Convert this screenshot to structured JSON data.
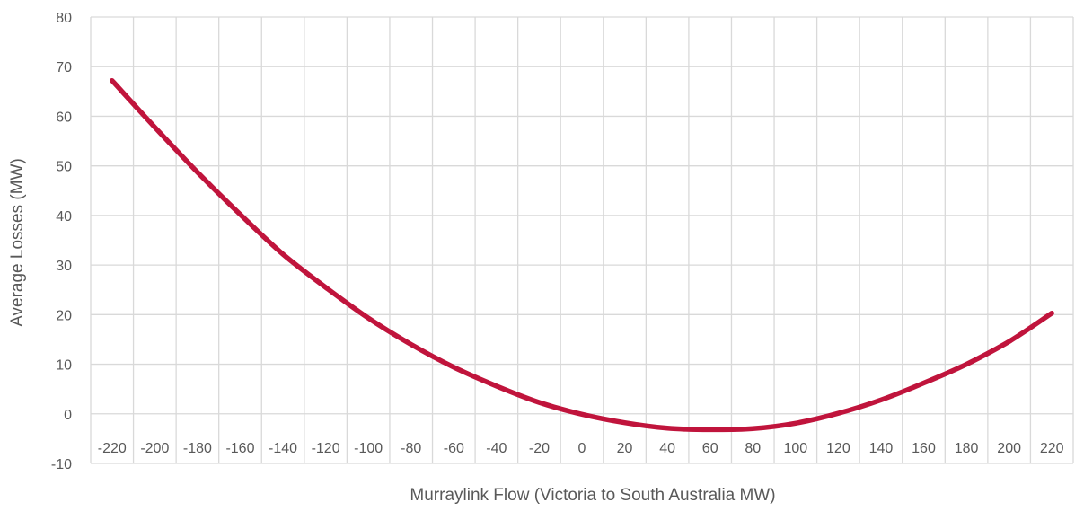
{
  "chart_data": {
    "type": "line",
    "title": "",
    "xlabel": "Murraylink Flow (Victoria to South Australia MW)",
    "ylabel": "Average Losses (MW)",
    "categories": [
      "-220",
      "-200",
      "-180",
      "-160",
      "-140",
      "-120",
      "-100",
      "-80",
      "-60",
      "-40",
      "-20",
      "0",
      "20",
      "40",
      "60",
      "80",
      "100",
      "120",
      "140",
      "160",
      "180",
      "200",
      "220"
    ],
    "yticks": [
      "80",
      "70",
      "60",
      "50",
      "40",
      "30",
      "20",
      "10",
      "0",
      "-10"
    ],
    "ylim": [
      -10,
      80
    ],
    "grid": true,
    "legend": "none",
    "series": [
      {
        "color": "#c0143c",
        "values": [
          67.2,
          57.8,
          48.7,
          40.2,
          32.2,
          25.5,
          19.3,
          14.0,
          9.4,
          5.6,
          2.3,
          -0.1,
          -1.8,
          -2.9,
          -3.2,
          -3.0,
          -1.9,
          0.1,
          2.8,
          6.2,
          10.0,
          14.6,
          20.3
        ]
      }
    ]
  }
}
